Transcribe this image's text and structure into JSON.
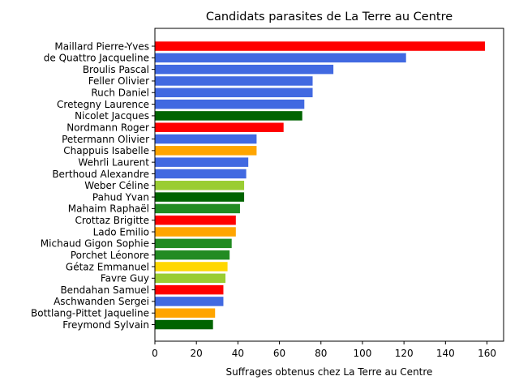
{
  "chart_data": {
    "type": "bar",
    "orientation": "horizontal",
    "title": "Candidats parasites de La Terre au Centre",
    "xlabel": "Suffrages obtenus chez La Terre au Centre",
    "ylabel": "",
    "xlim": [
      0,
      168
    ],
    "xticks": [
      0,
      20,
      40,
      60,
      80,
      100,
      120,
      140,
      160
    ],
    "grid": false,
    "categories": [
      "Maillard Pierre-Yves",
      "de Quattro Jacqueline",
      "Broulis Pascal",
      "Feller Olivier",
      "Ruch Daniel",
      "Cretegny Laurence",
      "Nicolet Jacques",
      "Nordmann Roger",
      "Petermann Olivier",
      "Chappuis Isabelle",
      "Wehrli Laurent",
      "Berthoud Alexandre",
      "Weber Céline",
      "Pahud Yvan",
      "Mahaim Raphaël",
      "Crottaz Brigitte",
      "Lado Emilio",
      "Michaud Gigon Sophie",
      "Porchet Léonore",
      "Gétaz Emmanuel",
      "Favre Guy",
      "Bendahan Samuel",
      "Aschwanden Sergei",
      "Bottlang-Pittet Jaqueline",
      "Freymond Sylvain"
    ],
    "values": [
      159,
      121,
      86,
      76,
      76,
      72,
      71,
      62,
      49,
      49,
      45,
      44,
      43,
      43,
      41,
      39,
      39,
      37,
      36,
      35,
      34,
      33,
      33,
      29,
      28
    ],
    "colors": [
      "#ff0000",
      "#4169e1",
      "#4169e1",
      "#4169e1",
      "#4169e1",
      "#4169e1",
      "#006400",
      "#ff0000",
      "#4169e1",
      "#ffa500",
      "#4169e1",
      "#4169e1",
      "#9acd32",
      "#006400",
      "#228b22",
      "#ff0000",
      "#ffa500",
      "#228b22",
      "#228b22",
      "#ffd700",
      "#9acd32",
      "#ff0000",
      "#4169e1",
      "#ffa500",
      "#006400"
    ]
  }
}
